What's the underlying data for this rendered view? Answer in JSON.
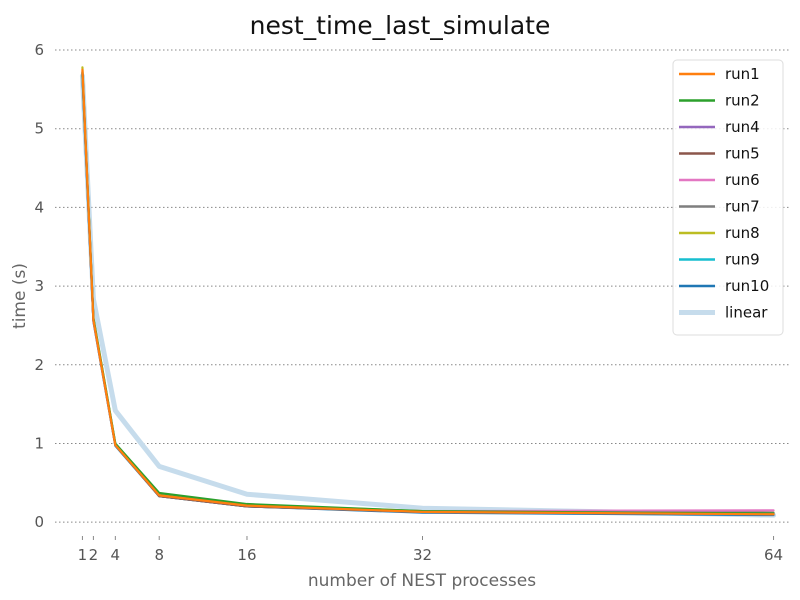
{
  "chart_data": {
    "type": "line",
    "title": "nest_time_last_simulate",
    "xlabel": "number of NEST processes",
    "ylabel": "time (s)",
    "xlim": [
      -1.5,
      65.5
    ],
    "ylim": [
      -0.1,
      6.0
    ],
    "x_ticks": [
      1,
      2,
      4,
      8,
      16,
      32,
      64
    ],
    "y_ticks": [
      0,
      1,
      2,
      3,
      4,
      5,
      6
    ],
    "grid": "horizontal",
    "legend_position": "top-right",
    "x": [
      1,
      2,
      4,
      8,
      16,
      32,
      64
    ],
    "series": [
      {
        "name": "run1",
        "color": "#ff7f0e",
        "values": [
          5.75,
          2.57,
          0.98,
          0.34,
          0.21,
          0.13,
          0.1
        ]
      },
      {
        "name": "run2",
        "color": "#2ca02c",
        "values": [
          5.72,
          2.6,
          1.0,
          0.37,
          0.23,
          0.14,
          0.11
        ]
      },
      {
        "name": "run4",
        "color": "#9467bd",
        "values": [
          5.7,
          2.58,
          0.99,
          0.34,
          0.21,
          0.13,
          0.1
        ]
      },
      {
        "name": "run5",
        "color": "#8c564b",
        "values": [
          5.71,
          2.57,
          0.98,
          0.33,
          0.2,
          0.13,
          0.1
        ]
      },
      {
        "name": "run6",
        "color": "#e377c2",
        "values": [
          5.73,
          2.56,
          0.98,
          0.34,
          0.21,
          0.14,
          0.15
        ]
      },
      {
        "name": "run7",
        "color": "#7f7f7f",
        "values": [
          5.7,
          2.57,
          0.98,
          0.33,
          0.2,
          0.13,
          0.12
        ]
      },
      {
        "name": "run8",
        "color": "#bcbd22",
        "values": [
          5.78,
          2.58,
          0.99,
          0.35,
          0.22,
          0.14,
          0.12
        ]
      },
      {
        "name": "run9",
        "color": "#17becf",
        "values": [
          5.68,
          2.56,
          0.98,
          0.33,
          0.2,
          0.13,
          0.1
        ]
      },
      {
        "name": "run10",
        "color": "#1f77b4",
        "values": [
          5.67,
          2.55,
          0.97,
          0.33,
          0.2,
          0.12,
          0.09
        ]
      },
      {
        "name": "linear",
        "color": "#c6dcec",
        "values": [
          5.67,
          2.835,
          1.4175,
          0.70875,
          0.354375,
          0.1771875,
          0.08859375
        ]
      }
    ]
  }
}
